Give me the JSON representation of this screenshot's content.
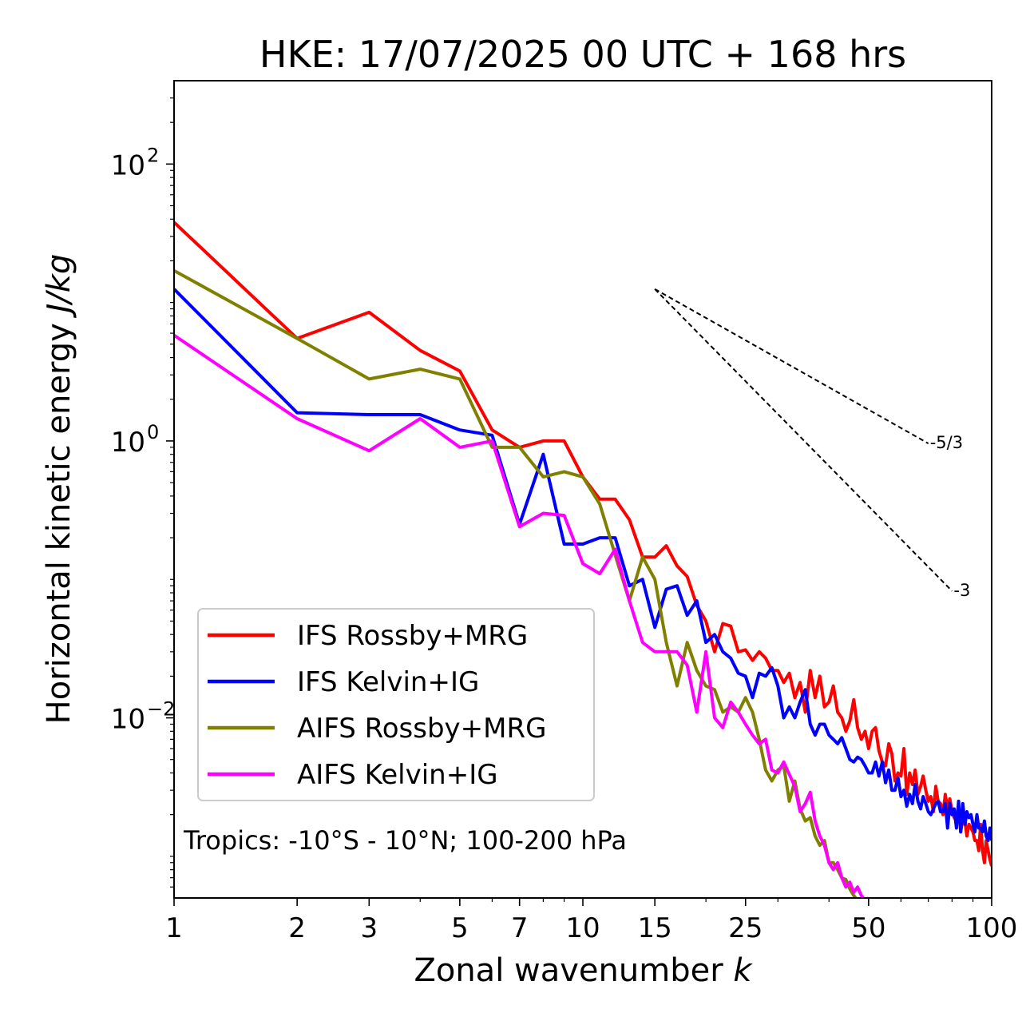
{
  "chart_data": {
    "type": "line",
    "title": "HKE: 17/07/2025 00 UTC + 168 hrs",
    "xlabel": "Zonal wavenumber k",
    "xlabel_text": "Zonal wavenumber ",
    "xlabel_var": "k",
    "ylabel_text": "Horizontal kinetic energy ",
    "ylabel_unit": "J/kg",
    "xscale": "log",
    "yscale": "log",
    "xlim": [
      1,
      100
    ],
    "ylim": [
      0.0005,
      400
    ],
    "x_ticks": [
      1,
      2,
      3,
      5,
      7,
      10,
      15,
      25,
      50,
      100
    ],
    "x_tick_labels": [
      "1",
      "2",
      "3",
      "5",
      "7",
      "10",
      "15",
      "25",
      "50",
      "100"
    ],
    "y_ticks": [
      {
        "value": 100,
        "base": "10",
        "exp": "2"
      },
      {
        "value": 1,
        "base": "10",
        "exp": "0"
      },
      {
        "value": 0.01,
        "base": "10",
        "exp": "−2"
      }
    ],
    "annotation": "Tropics: -10°S - 10°N; 100-200 hPa",
    "legend_position": "lower-left",
    "reference_lines": [
      {
        "label": "-5/3",
        "slope": -1.6667,
        "x0": 15,
        "y0": 12.5,
        "x1": 70
      },
      {
        "label": "-3",
        "slope": -3,
        "x0": 15,
        "y0": 12.5,
        "x1": 80
      }
    ],
    "series": [
      {
        "name": "IFS Rossby+MRG",
        "color": "#ff0000",
        "values": [
          38,
          5.5,
          8.5,
          4.5,
          3.2,
          1.2,
          0.9,
          1.0,
          1.0,
          0.55,
          0.38,
          0.38,
          0.27,
          0.145,
          0.145,
          0.175,
          0.125,
          0.105,
          0.065,
          0.05,
          0.03,
          0.048,
          0.046,
          0.03,
          0.031,
          0.026,
          0.03,
          0.027,
          0.022,
          0.022,
          0.018,
          0.021,
          0.014,
          0.018,
          0.011,
          0.022,
          0.014,
          0.02,
          0.012,
          0.013,
          0.017,
          0.011,
          0.01,
          0.008,
          0.0095,
          0.0135,
          0.0085,
          0.007,
          0.008,
          0.006,
          0.008,
          0.0085,
          0.0058,
          0.0048,
          0.0045,
          0.0065,
          0.0055,
          0.0035,
          0.004,
          0.0038,
          0.006,
          0.0028,
          0.004,
          0.0033,
          0.0042,
          0.0028,
          0.0032,
          0.0038,
          0.003,
          0.0025,
          0.0027,
          0.0021,
          0.0032,
          0.0025,
          0.0024,
          0.002,
          0.0028,
          0.0022,
          0.0026,
          0.0021,
          0.0019,
          0.0018,
          0.0023,
          0.0015,
          0.0019,
          0.0018,
          0.0014,
          0.0017,
          0.0016,
          0.0015,
          0.0013,
          0.0013,
          0.0011,
          0.0017,
          0.0011,
          0.0009,
          0.0013,
          0.0011,
          0.00095,
          0.00085
        ]
      },
      {
        "name": "IFS Kelvin+IG",
        "color": "#0000ff",
        "values": [
          12.5,
          1.6,
          1.55,
          1.55,
          1.2,
          1.1,
          0.25,
          0.8,
          0.18,
          0.18,
          0.2,
          0.2,
          0.09,
          0.1,
          0.045,
          0.085,
          0.09,
          0.055,
          0.07,
          0.035,
          0.04,
          0.03,
          0.027,
          0.021,
          0.02,
          0.014,
          0.021,
          0.02,
          0.023,
          0.017,
          0.01,
          0.012,
          0.01,
          0.013,
          0.016,
          0.009,
          0.0075,
          0.009,
          0.009,
          0.0075,
          0.007,
          0.0065,
          0.0072,
          0.006,
          0.005,
          0.0048,
          0.0052,
          0.005,
          0.0045,
          0.004,
          0.004,
          0.0048,
          0.0038,
          0.0048,
          0.0034,
          0.0042,
          0.003,
          0.003,
          0.0037,
          0.0027,
          0.003,
          0.0023,
          0.0028,
          0.0024,
          0.0033,
          0.0025,
          0.0022,
          0.0027,
          0.0024,
          0.0021,
          0.002,
          0.0022,
          0.0024,
          0.0025,
          0.0021,
          0.0021,
          0.0024,
          0.0016,
          0.0024,
          0.002,
          0.0022,
          0.0016,
          0.0025,
          0.0015,
          0.0024,
          0.0017,
          0.0021,
          0.0019,
          0.002,
          0.0017,
          0.0015,
          0.002,
          0.0016,
          0.0016,
          0.0015,
          0.0018,
          0.0014,
          0.0013,
          0.0016,
          0.0013
        ]
      },
      {
        "name": "AIFS Rossby+MRG",
        "color": "#808000",
        "values": [
          17,
          5.5,
          2.8,
          3.3,
          2.8,
          0.9,
          0.9,
          0.55,
          0.6,
          0.55,
          0.35,
          0.15,
          0.07,
          0.145,
          0.1,
          0.035,
          0.017,
          0.035,
          0.022,
          0.017,
          0.016,
          0.011,
          0.012,
          0.011,
          0.014,
          0.011,
          0.007,
          0.0042,
          0.0035,
          0.0042,
          0.0045,
          0.0025,
          0.0035,
          0.0022,
          0.0018,
          0.0019,
          0.0014,
          0.0012,
          0.0013,
          0.0009,
          0.0009,
          0.0008,
          0.0007,
          0.00068,
          0.00058,
          0.00052,
          0.00048,
          0.00047,
          0.00046,
          0.00045
        ]
      },
      {
        "name": "AIFS Kelvin+IG",
        "color": "#ff00ff",
        "values": [
          5.8,
          1.45,
          0.85,
          1.45,
          0.9,
          1.0,
          0.24,
          0.3,
          0.29,
          0.13,
          0.11,
          0.165,
          0.07,
          0.035,
          0.03,
          0.03,
          0.03,
          0.024,
          0.011,
          0.03,
          0.01,
          0.0085,
          0.013,
          0.011,
          0.009,
          0.0075,
          0.0065,
          0.007,
          0.0042,
          0.004,
          0.0048,
          0.0039,
          0.0032,
          0.0021,
          0.0024,
          0.0029,
          0.0018,
          0.0014,
          0.0012,
          0.0009,
          0.0008,
          0.0009,
          0.0007,
          0.0006,
          0.00065,
          0.00055,
          0.0006,
          0.00052,
          0.00048,
          0.0005
        ]
      }
    ]
  }
}
